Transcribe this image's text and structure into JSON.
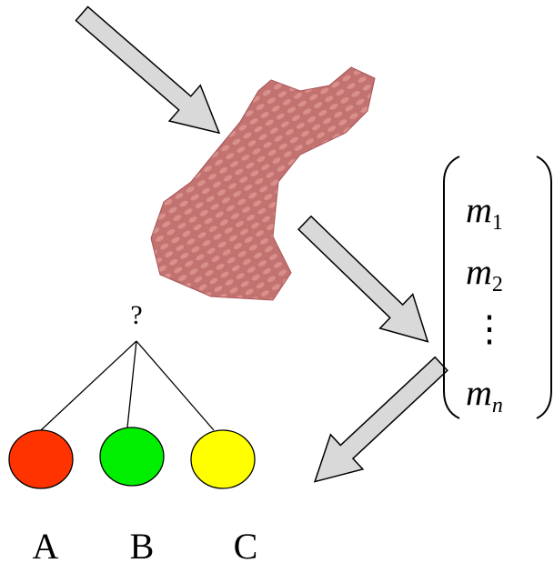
{
  "question": "?",
  "classes": [
    {
      "label": "A"
    },
    {
      "label": "B"
    },
    {
      "label": "C"
    }
  ],
  "vector": {
    "entries": [
      {
        "symbol": "m",
        "subscript": "1"
      },
      {
        "symbol": "m",
        "subscript": "2"
      },
      {
        "dots": "⋮"
      },
      {
        "symbol": "m",
        "subscript": "n"
      }
    ]
  }
}
